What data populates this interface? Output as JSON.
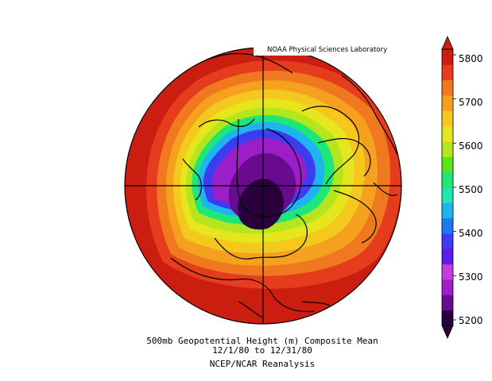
{
  "header": {
    "credit": "NOAA Physical Sciences Laboratory"
  },
  "titles": {
    "line1": "500mb Geopotential Height (m) Composite Mean",
    "line2": "12/1/80  to 12/31/80",
    "line3": "NCEP/NCAR Reanalysis"
  },
  "colorbar": {
    "ticks": [
      "5200",
      "5300",
      "5400",
      "5500",
      "5600",
      "5700",
      "5800"
    ],
    "bands": [
      "#2a003c",
      "#6a0a8e",
      "#9b1ec8",
      "#c83cdc",
      "#5a1ee6",
      "#3c3cf0",
      "#1e78f5",
      "#1eb4f0",
      "#1ee6b4",
      "#1ee678",
      "#5ae61e",
      "#b4e61e",
      "#e6e61e",
      "#f5c81e",
      "#f5a01e",
      "#f0781e",
      "#e63c1e",
      "#cc1e10"
    ],
    "arrow_colors": {
      "low": "#2a003c",
      "high": "#cc1e10"
    }
  },
  "map": {
    "projection": "north-polar-stereographic",
    "variable": "500mb geopotential height",
    "units": "m",
    "levels": [
      {
        "value": 5800,
        "color": "#cc1e10"
      },
      {
        "value": 5750,
        "color": "#e63c1e"
      },
      {
        "value": 5700,
        "color": "#f0781e"
      },
      {
        "value": 5650,
        "color": "#f5a01e"
      },
      {
        "value": 5600,
        "color": "#f5c81e"
      },
      {
        "value": 5550,
        "color": "#e6e61e"
      },
      {
        "value": 5500,
        "color": "#b4e61e"
      },
      {
        "value": 5450,
        "color": "#1ee678"
      },
      {
        "value": 5400,
        "color": "#1eb4f0"
      },
      {
        "value": 5350,
        "color": "#3c3cf0"
      },
      {
        "value": 5300,
        "color": "#9b1ec8"
      },
      {
        "value": 5250,
        "color": "#6a0a8e"
      },
      {
        "value": 5200,
        "color": "#2a003c"
      }
    ]
  }
}
